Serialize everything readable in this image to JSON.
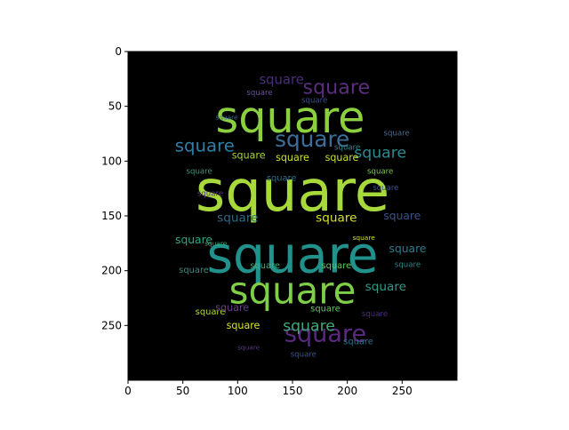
{
  "chart_data": {
    "type": "heatmap",
    "image_kind": "word-cloud",
    "word": "square",
    "xlim": [
      0,
      300
    ],
    "ylim": [
      300,
      0
    ],
    "x_ticks": [
      0,
      50,
      100,
      150,
      200,
      250
    ],
    "y_ticks": [
      0,
      50,
      100,
      150,
      200,
      250
    ],
    "background_color": "#000000",
    "colormap": [
      "#440154",
      "#3b528b",
      "#21918c",
      "#5ec962",
      "#b5de2b",
      "#fde725"
    ],
    "mask": "circle",
    "words": [
      {
        "x": 150,
        "y": 128,
        "size": 52,
        "color": "#a8d93a"
      },
      {
        "x": 150,
        "y": 186,
        "size": 46,
        "color": "#21918c"
      },
      {
        "x": 148,
        "y": 60,
        "size": 40,
        "color": "#8ccf3f"
      },
      {
        "x": 150,
        "y": 218,
        "size": 34,
        "color": "#7fce47"
      },
      {
        "x": 168,
        "y": 80,
        "size": 20,
        "color": "#3b6f9a"
      },
      {
        "x": 70,
        "y": 86,
        "size": 16,
        "color": "#2c7fa6"
      },
      {
        "x": 180,
        "y": 258,
        "size": 22,
        "color": "#5a2a7e"
      },
      {
        "x": 190,
        "y": 33,
        "size": 18,
        "color": "#5b2d80"
      },
      {
        "x": 165,
        "y": 251,
        "size": 14,
        "color": "#3eaa7b"
      },
      {
        "x": 230,
        "y": 93,
        "size": 14,
        "color": "#2b8a8e"
      },
      {
        "x": 140,
        "y": 26,
        "size": 12,
        "color": "#4a2f76"
      },
      {
        "x": 100,
        "y": 152,
        "size": 11,
        "color": "#2e6b8a"
      },
      {
        "x": 190,
        "y": 152,
        "size": 11,
        "color": "#d4e12a"
      },
      {
        "x": 150,
        "y": 97,
        "size": 9,
        "color": "#cde32c"
      },
      {
        "x": 110,
        "y": 95,
        "size": 9,
        "color": "#a6d63a"
      },
      {
        "x": 195,
        "y": 97,
        "size": 9,
        "color": "#c8e130"
      },
      {
        "x": 75,
        "y": 238,
        "size": 8,
        "color": "#b4dd2f"
      },
      {
        "x": 105,
        "y": 250,
        "size": 9,
        "color": "#d9e52a"
      },
      {
        "x": 180,
        "y": 235,
        "size": 8,
        "color": "#5ec962"
      },
      {
        "x": 125,
        "y": 196,
        "size": 8,
        "color": "#40b07a"
      },
      {
        "x": 190,
        "y": 196,
        "size": 8,
        "color": "#5ec962"
      },
      {
        "x": 60,
        "y": 172,
        "size": 10,
        "color": "#2fa684"
      },
      {
        "x": 250,
        "y": 150,
        "size": 10,
        "color": "#3b528b"
      },
      {
        "x": 255,
        "y": 180,
        "size": 10,
        "color": "#2f7c8e"
      },
      {
        "x": 235,
        "y": 215,
        "size": 11,
        "color": "#2f9a89"
      },
      {
        "x": 95,
        "y": 234,
        "size": 9,
        "color": "#6a3f8c"
      },
      {
        "x": 140,
        "y": 116,
        "size": 8,
        "color": "#2e6b8a"
      },
      {
        "x": 65,
        "y": 110,
        "size": 7,
        "color": "#4c8f7e"
      },
      {
        "x": 230,
        "y": 110,
        "size": 7,
        "color": "#7cc74d"
      },
      {
        "x": 200,
        "y": 88,
        "size": 7,
        "color": "#2f8a8a"
      },
      {
        "x": 235,
        "y": 125,
        "size": 7,
        "color": "#3b528b"
      },
      {
        "x": 75,
        "y": 130,
        "size": 7,
        "color": "#5b3a82"
      },
      {
        "x": 210,
        "y": 265,
        "size": 8,
        "color": "#2d708e"
      },
      {
        "x": 160,
        "y": 277,
        "size": 7,
        "color": "#3b528b"
      },
      {
        "x": 225,
        "y": 240,
        "size": 7,
        "color": "#4c2e7a"
      },
      {
        "x": 60,
        "y": 200,
        "size": 8,
        "color": "#3e8b80"
      },
      {
        "x": 245,
        "y": 75,
        "size": 7,
        "color": "#4c6a8a"
      },
      {
        "x": 255,
        "y": 195,
        "size": 7,
        "color": "#2f8a8a"
      },
      {
        "x": 120,
        "y": 38,
        "size": 7,
        "color": "#6c4f9a"
      },
      {
        "x": 170,
        "y": 45,
        "size": 7,
        "color": "#3b528b"
      },
      {
        "x": 110,
        "y": 270,
        "size": 6,
        "color": "#5b3a82"
      },
      {
        "x": 90,
        "y": 60,
        "size": 6,
        "color": "#3b6f9a"
      },
      {
        "x": 215,
        "y": 170,
        "size": 6,
        "color": "#d4e12a"
      },
      {
        "x": 80,
        "y": 175,
        "size": 6,
        "color": "#3eaa7b"
      }
    ]
  }
}
